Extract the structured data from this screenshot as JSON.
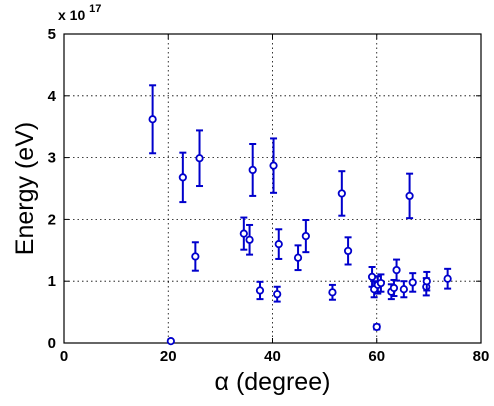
{
  "chart_data": {
    "type": "scatter",
    "xlabel": "α (degree)",
    "ylabel": "Energy (eV)",
    "xlim": [
      0,
      80
    ],
    "ylim": [
      0,
      5
    ],
    "y_multiplier": "x 10",
    "y_multiplier_exponent": "17",
    "x_ticks": [
      0,
      20,
      40,
      60,
      80
    ],
    "y_ticks": [
      0,
      1,
      2,
      3,
      4,
      5
    ],
    "x_tick_labels": [
      "0",
      "20",
      "40",
      "60",
      "80"
    ],
    "y_tick_labels": [
      "0",
      "1",
      "2",
      "3",
      "4",
      "5"
    ],
    "grid": true,
    "color": "#0000cc",
    "marker": "circle",
    "series": [
      {
        "points": [
          {
            "x": 17.0,
            "y": 3.62,
            "err": 0.55
          },
          {
            "x": 20.5,
            "y": 0.03,
            "err": 0.0
          },
          {
            "x": 22.8,
            "y": 2.68,
            "err": 0.4
          },
          {
            "x": 25.2,
            "y": 1.4,
            "err": 0.23
          },
          {
            "x": 26.0,
            "y": 2.99,
            "err": 0.45
          },
          {
            "x": 34.5,
            "y": 1.77,
            "err": 0.26
          },
          {
            "x": 35.6,
            "y": 1.67,
            "err": 0.24
          },
          {
            "x": 36.2,
            "y": 2.8,
            "err": 0.42
          },
          {
            "x": 37.6,
            "y": 0.85,
            "err": 0.14
          },
          {
            "x": 40.2,
            "y": 2.87,
            "err": 0.44
          },
          {
            "x": 40.9,
            "y": 0.79,
            "err": 0.12
          },
          {
            "x": 41.2,
            "y": 1.6,
            "err": 0.24
          },
          {
            "x": 44.9,
            "y": 1.38,
            "err": 0.2
          },
          {
            "x": 46.4,
            "y": 1.73,
            "err": 0.26
          },
          {
            "x": 51.5,
            "y": 0.82,
            "err": 0.12
          },
          {
            "x": 53.3,
            "y": 2.42,
            "err": 0.36
          },
          {
            "x": 54.5,
            "y": 1.49,
            "err": 0.22
          },
          {
            "x": 59.1,
            "y": 1.07,
            "err": 0.16
          },
          {
            "x": 59.5,
            "y": 0.87,
            "err": 0.13
          },
          {
            "x": 60.0,
            "y": 0.26,
            "err": 0.04
          },
          {
            "x": 60.2,
            "y": 0.94,
            "err": 0.14
          },
          {
            "x": 60.8,
            "y": 0.97,
            "err": 0.14
          },
          {
            "x": 62.8,
            "y": 0.83,
            "err": 0.12
          },
          {
            "x": 63.3,
            "y": 0.89,
            "err": 0.13
          },
          {
            "x": 63.8,
            "y": 1.18,
            "err": 0.17
          },
          {
            "x": 65.2,
            "y": 0.87,
            "err": 0.13
          },
          {
            "x": 66.3,
            "y": 2.38,
            "err": 0.36
          },
          {
            "x": 66.9,
            "y": 0.98,
            "err": 0.15
          },
          {
            "x": 69.5,
            "y": 0.91,
            "err": 0.14
          },
          {
            "x": 69.6,
            "y": 1.0,
            "err": 0.15
          },
          {
            "x": 73.6,
            "y": 1.04,
            "err": 0.16
          }
        ]
      }
    ]
  }
}
